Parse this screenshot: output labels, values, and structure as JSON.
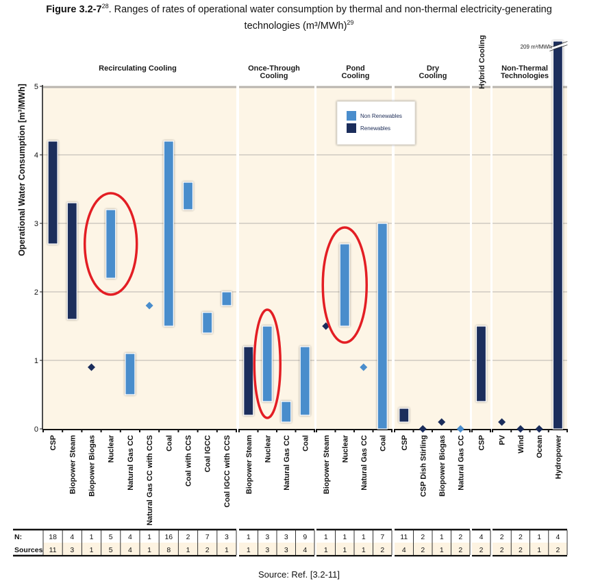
{
  "figure": {
    "label": "Figure 3.2-7",
    "label_sup": "28",
    "title_line1": ". Ranges of rates of operational water consumption by thermal and non-thermal electricity-generating",
    "title_line2": "technologies (m³/MWh)",
    "title_line2_sup": "29",
    "source": "Source: Ref. [3.2-11]"
  },
  "colors": {
    "renewable": "#1b2d5b",
    "non_renewable": "#4a8dcc",
    "plot_bg": "#fdf5e6",
    "highlight": "#e31e24",
    "grid": "#b8b4ad"
  },
  "chart_data": {
    "type": "range-bar",
    "title": "Ranges of rates of operational water consumption by thermal and non-thermal electricity-generating technologies (m³/MWh)",
    "ylabel": "Operational Water Consumption [m³/MWh]",
    "xlabel": "",
    "ylim": [
      0,
      5
    ],
    "yticks": [
      0,
      1,
      2,
      3,
      4,
      5
    ],
    "grid": true,
    "legend": {
      "placement": "top-center",
      "entries": [
        {
          "name": "Non Renewables",
          "key": "non_renewable"
        },
        {
          "name": "Renewables",
          "key": "renewable"
        }
      ]
    },
    "annotation_off_scale": "209 m³/MWh",
    "table_row_labels": [
      "N:",
      "Sources:"
    ],
    "groups": [
      {
        "name": "Recirculating Cooling",
        "items": [
          {
            "label": "CSP",
            "type": "renewable",
            "min": 2.7,
            "max": 4.2,
            "n": 18,
            "sources": 11
          },
          {
            "label": "Biopower Steam",
            "type": "renewable",
            "min": 1.6,
            "max": 3.3,
            "n": 4,
            "sources": 3
          },
          {
            "label": "Biopower Biogas",
            "type": "renewable",
            "min": 0.9,
            "max": 0.9,
            "n": 1,
            "sources": 1
          },
          {
            "label": "Nuclear",
            "type": "non_renewable",
            "min": 2.2,
            "max": 3.2,
            "n": 5,
            "sources": 5,
            "highlighted": true
          },
          {
            "label": "Natural Gas CC",
            "type": "non_renewable",
            "min": 0.5,
            "max": 1.1,
            "n": 4,
            "sources": 4
          },
          {
            "label": "Natural Gas CC with CCS",
            "type": "non_renewable",
            "min": 1.8,
            "max": 1.8,
            "n": 1,
            "sources": 1
          },
          {
            "label": "Coal",
            "type": "non_renewable",
            "min": 1.5,
            "max": 4.2,
            "n": 16,
            "sources": 8
          },
          {
            "label": "Coal with CCS",
            "type": "non_renewable",
            "min": 3.2,
            "max": 3.6,
            "n": 2,
            "sources": 1
          },
          {
            "label": "Coal IGCC",
            "type": "non_renewable",
            "min": 1.4,
            "max": 1.7,
            "n": 7,
            "sources": 2
          },
          {
            "label": "Coal IGCC with CCS",
            "type": "non_renewable",
            "min": 1.8,
            "max": 2.0,
            "n": 3,
            "sources": 1
          }
        ]
      },
      {
        "name": "Once-Through Cooling",
        "items": [
          {
            "label": "Biopower Steam",
            "type": "renewable",
            "min": 0.2,
            "max": 1.2,
            "n": 1,
            "sources": 1
          },
          {
            "label": "Nuclear",
            "type": "non_renewable",
            "min": 0.4,
            "max": 1.5,
            "n": 3,
            "sources": 3,
            "highlighted": true
          },
          {
            "label": "Natural Gas CC",
            "type": "non_renewable",
            "min": 0.1,
            "max": 0.4,
            "n": 3,
            "sources": 3
          },
          {
            "label": "Coal",
            "type": "non_renewable",
            "min": 0.2,
            "max": 1.2,
            "n": 9,
            "sources": 4
          }
        ]
      },
      {
        "name": "Pond Cooling",
        "items": [
          {
            "label": "Biopower Steam",
            "type": "renewable",
            "min": 1.5,
            "max": 1.5,
            "n": 1,
            "sources": 1
          },
          {
            "label": "Nuclear",
            "type": "non_renewable",
            "min": 1.5,
            "max": 2.7,
            "n": 1,
            "sources": 1,
            "highlighted": true
          },
          {
            "label": "Natural Gas CC",
            "type": "non_renewable",
            "min": 0.9,
            "max": 0.9,
            "n": 1,
            "sources": 1
          },
          {
            "label": "Coal",
            "type": "non_renewable",
            "min": 0.0,
            "max": 3.0,
            "n": 7,
            "sources": 2
          }
        ]
      },
      {
        "name": "Dry Cooling",
        "items": [
          {
            "label": "CSP",
            "type": "renewable",
            "min": 0.1,
            "max": 0.3,
            "n": 11,
            "sources": 4
          },
          {
            "label": "CSP Dish Stirling",
            "type": "renewable",
            "min": 0.0,
            "max": 0.0,
            "n": 2,
            "sources": 2
          },
          {
            "label": "Biopower Biogas",
            "type": "renewable",
            "min": 0.1,
            "max": 0.1,
            "n": 1,
            "sources": 1
          },
          {
            "label": "Natural Gas CC",
            "type": "non_renewable",
            "min": 0.0,
            "max": 0.0,
            "n": 2,
            "sources": 2
          }
        ]
      },
      {
        "name": "Hybrid Cooling",
        "vertical_title": true,
        "items": [
          {
            "label": "CSP",
            "type": "renewable",
            "min": 0.4,
            "max": 1.5,
            "n": 4,
            "sources": 2
          }
        ]
      },
      {
        "name": "Non-Thermal Technologies",
        "items": [
          {
            "label": "PV",
            "type": "renewable",
            "min": 0.1,
            "max": 0.1,
            "n": 2,
            "sources": 2
          },
          {
            "label": "Wind",
            "type": "renewable",
            "min": 0.0,
            "max": 0.0,
            "n": 2,
            "sources": 2
          },
          {
            "label": "Ocean",
            "type": "renewable",
            "min": 0.0,
            "max": 0.0,
            "n": 1,
            "sources": 1
          },
          {
            "label": "Hydropower",
            "type": "renewable",
            "min": 0.0,
            "max": 209,
            "n": 4,
            "sources": 2,
            "off_scale": true
          }
        ]
      }
    ]
  }
}
